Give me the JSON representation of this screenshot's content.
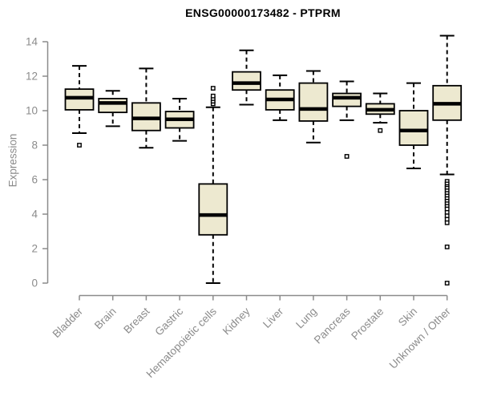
{
  "chart_data": {
    "type": "boxplot",
    "title": "ENSG00000173482 - PTPRM",
    "ylabel": "Expression",
    "xlabel": "",
    "ylim": [
      0,
      14
    ],
    "yticks": [
      0,
      2,
      4,
      6,
      8,
      10,
      12,
      14
    ],
    "grid": false,
    "legend": null,
    "colors": {
      "box_fill": "#EDE9D0",
      "box_stroke": "#000000",
      "axis": "#8B8B8B",
      "title": "#000000",
      "background": "#FFFFFF"
    },
    "categories": [
      "Bladder",
      "Brain",
      "Breast",
      "Gastric",
      "Hematopoietic cells",
      "Kidney",
      "Liver",
      "Lung",
      "Pancreas",
      "Prostate",
      "Skin",
      "Unknown / Other"
    ],
    "series": [
      {
        "name": "Bladder",
        "whisker_low": 8.7,
        "q1": 10.05,
        "median": 10.75,
        "q3": 11.25,
        "whisker_high": 12.6,
        "outliers": [
          8.0
        ]
      },
      {
        "name": "Brain",
        "whisker_low": 9.1,
        "q1": 9.9,
        "median": 10.45,
        "q3": 10.7,
        "whisker_high": 11.15,
        "outliers": []
      },
      {
        "name": "Breast",
        "whisker_low": 7.85,
        "q1": 8.85,
        "median": 9.55,
        "q3": 10.45,
        "whisker_high": 12.45,
        "outliers": []
      },
      {
        "name": "Gastric",
        "whisker_low": 8.25,
        "q1": 9.0,
        "median": 9.5,
        "q3": 9.95,
        "whisker_high": 10.7,
        "outliers": []
      },
      {
        "name": "Hematopoietic cells",
        "whisker_low": 0.0,
        "q1": 2.8,
        "median": 3.95,
        "q3": 5.75,
        "whisker_high": 10.2,
        "outliers": [
          10.4,
          10.55,
          10.7,
          10.85,
          11.3
        ]
      },
      {
        "name": "Kidney",
        "whisker_low": 10.35,
        "q1": 11.2,
        "median": 11.6,
        "q3": 12.25,
        "whisker_high": 13.5,
        "outliers": []
      },
      {
        "name": "Liver",
        "whisker_low": 9.45,
        "q1": 10.05,
        "median": 10.65,
        "q3": 11.2,
        "whisker_high": 12.05,
        "outliers": []
      },
      {
        "name": "Lung",
        "whisker_low": 8.15,
        "q1": 9.4,
        "median": 10.1,
        "q3": 11.6,
        "whisker_high": 12.3,
        "outliers": []
      },
      {
        "name": "Pancreas",
        "whisker_low": 9.45,
        "q1": 10.25,
        "median": 10.75,
        "q3": 11.0,
        "whisker_high": 11.7,
        "outliers": [
          7.35
        ]
      },
      {
        "name": "Prostate",
        "whisker_low": 9.3,
        "q1": 9.8,
        "median": 10.05,
        "q3": 10.4,
        "whisker_high": 11.0,
        "outliers": [
          8.85
        ]
      },
      {
        "name": "Skin",
        "whisker_low": 6.65,
        "q1": 8.0,
        "median": 8.85,
        "q3": 10.0,
        "whisker_high": 11.6,
        "outliers": []
      },
      {
        "name": "Unknown / Other",
        "whisker_low": 6.3,
        "q1": 9.45,
        "median": 10.4,
        "q3": 11.45,
        "whisker_high": 14.35,
        "outliers": [
          5.9,
          5.75,
          5.6,
          5.5,
          5.35,
          5.2,
          5.05,
          4.9,
          4.75,
          4.6,
          4.45,
          4.3,
          4.1,
          3.9,
          3.7,
          3.5,
          2.1,
          0.0
        ]
      }
    ]
  }
}
